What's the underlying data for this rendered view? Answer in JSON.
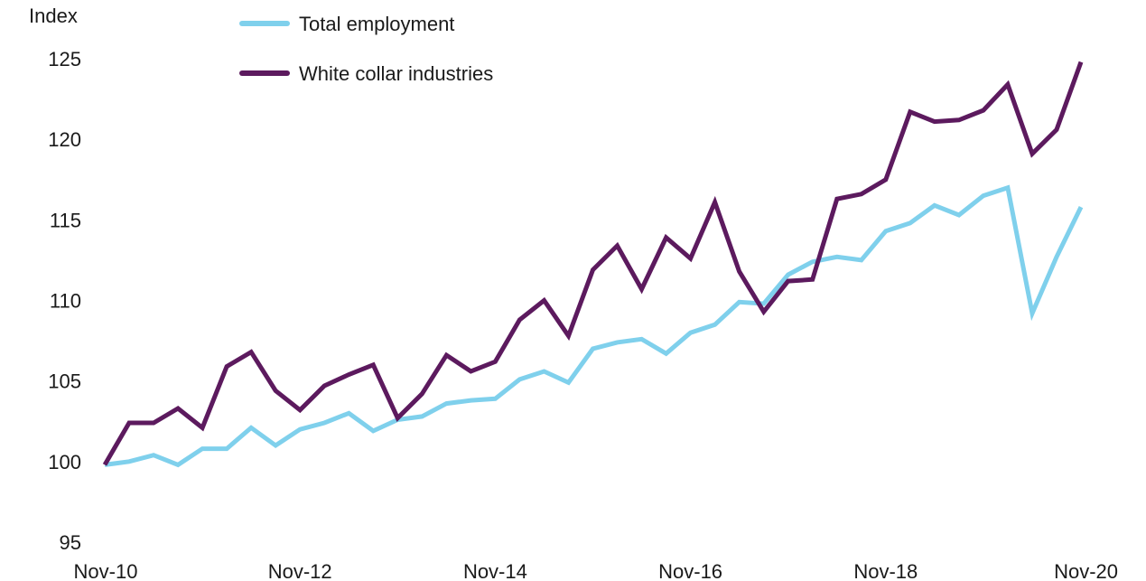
{
  "chart_data": {
    "type": "line",
    "title": "",
    "ylabel": "Index",
    "xlabel": "",
    "ylim": [
      95,
      125
    ],
    "yticks": [
      95,
      100,
      105,
      110,
      115,
      120,
      125
    ],
    "x_tick_labels": [
      "Nov-10",
      "Nov-12",
      "Nov-14",
      "Nov-16",
      "Nov-18",
      "Nov-20"
    ],
    "grid": false,
    "legend_position": "top-center",
    "x": [
      "Nov-10",
      "Feb-11",
      "May-11",
      "Aug-11",
      "Nov-11",
      "Feb-12",
      "May-12",
      "Aug-12",
      "Nov-12",
      "Feb-13",
      "May-13",
      "Aug-13",
      "Nov-13",
      "Feb-14",
      "May-14",
      "Aug-14",
      "Nov-14",
      "Feb-15",
      "May-15",
      "Aug-15",
      "Nov-15",
      "Feb-16",
      "May-16",
      "Aug-16",
      "Nov-16",
      "Feb-17",
      "May-17",
      "Aug-17",
      "Nov-17",
      "Feb-18",
      "May-18",
      "Aug-18",
      "Nov-18",
      "Feb-19",
      "May-19",
      "Aug-19",
      "Nov-19",
      "Feb-20",
      "May-20",
      "Aug-20",
      "Nov-20"
    ],
    "series": [
      {
        "name": "Total employment",
        "color": "#7fd0ec",
        "values": [
          99.8,
          100.0,
          100.4,
          99.8,
          100.8,
          100.8,
          102.1,
          101.0,
          102.0,
          102.4,
          103.0,
          101.9,
          102.6,
          102.8,
          103.6,
          103.8,
          103.9,
          105.1,
          105.6,
          104.9,
          107.0,
          107.4,
          107.6,
          106.7,
          108.0,
          108.5,
          109.9,
          109.8,
          111.6,
          112.4,
          112.7,
          112.5,
          114.3,
          114.8,
          115.9,
          115.3,
          116.5,
          117.0,
          109.2,
          112.7,
          115.8
        ]
      },
      {
        "name": "White collar industries",
        "color": "#5c1a5e",
        "values": [
          99.8,
          102.4,
          102.4,
          103.3,
          102.1,
          105.9,
          106.8,
          104.4,
          103.2,
          104.7,
          105.4,
          106.0,
          102.7,
          104.2,
          106.6,
          105.6,
          106.2,
          108.8,
          110.0,
          107.8,
          111.9,
          113.4,
          110.7,
          113.9,
          112.6,
          116.1,
          111.8,
          109.3,
          111.2,
          111.3,
          116.3,
          116.6,
          117.5,
          121.7,
          121.1,
          121.2,
          121.8,
          123.4,
          119.1,
          120.6,
          124.8
        ]
      }
    ]
  }
}
